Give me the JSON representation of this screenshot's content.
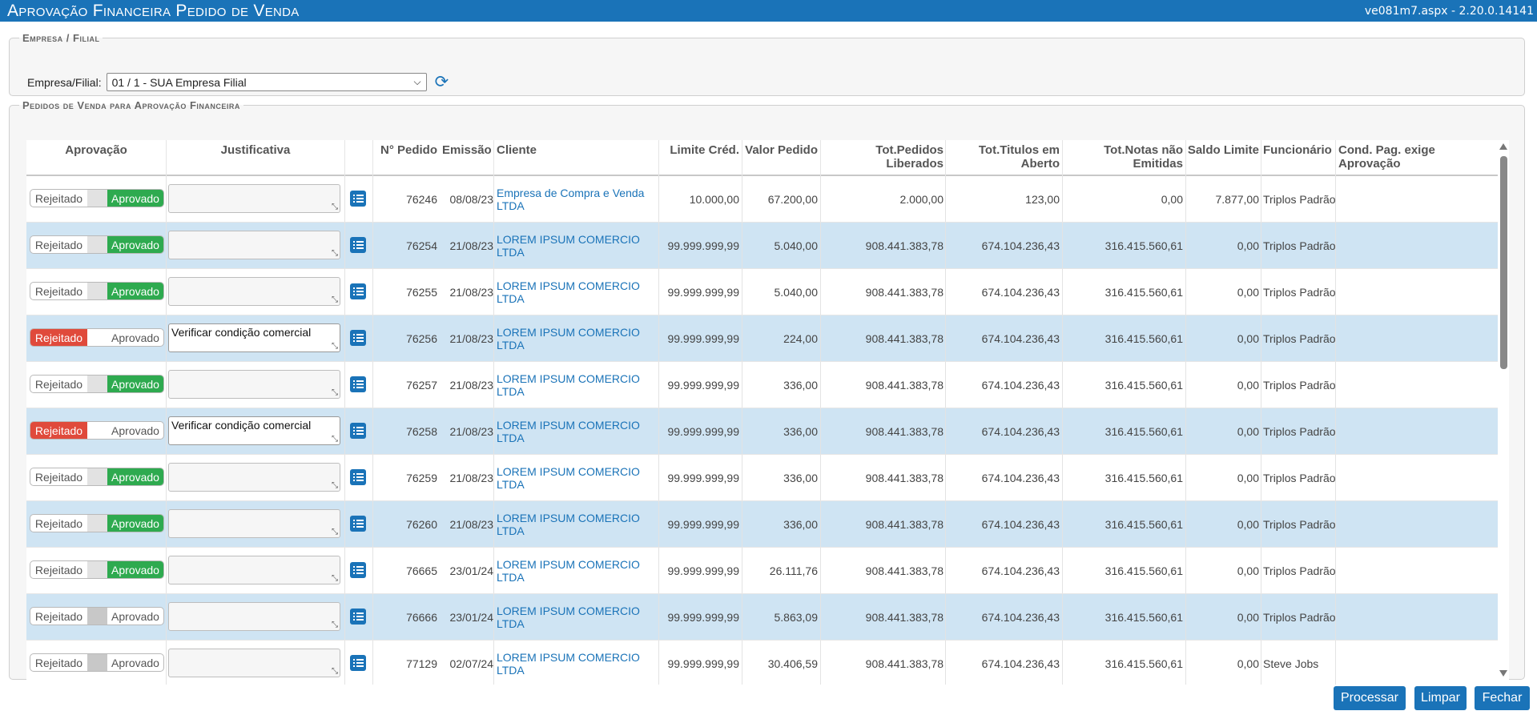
{
  "header": {
    "title": "Aprovação Financeira Pedido de Venda",
    "version": "ve081m7.aspx - 2.20.0.14141"
  },
  "empresa": {
    "legend": "Empresa / Filial",
    "label": "Empresa/Filial:",
    "selected": "01 / 1 - SUA Empresa Filial"
  },
  "pedidos": {
    "legend": "Pedidos de Venda para Aprovação Financeira",
    "columns": {
      "aprovacao": "Aprovação",
      "justificativa": "Justificativa",
      "pedido": "N° Pedido",
      "emissao": "Emissão",
      "cliente": "Cliente",
      "limite": "Limite Créd.",
      "valor": "Valor Pedido",
      "totped_1": "Tot.Pedidos",
      "totped_2": "Liberados",
      "tottit_1": "Tot.Titulos em",
      "tottit_2": "Aberto",
      "totnotas_1": "Tot.Notas não",
      "totnotas_2": "Emitidas",
      "saldo": "Saldo Limite",
      "funcionario": "Funcionário",
      "cond_1": "Cond. Pag. exige",
      "cond_2": "Aprovação"
    },
    "toggle_labels": {
      "rejected": "Rejeitado",
      "approved": "Aprovado"
    },
    "rows": [
      {
        "status": "approved",
        "justificativa": "",
        "pedido": "76246",
        "emissao": "08/08/23",
        "cliente_1": "Empresa de Compra e Venda",
        "cliente_2": "LTDA",
        "limite": "10.000,00",
        "valor": "67.200,00",
        "totped": "2.000,00",
        "tottit": "123,00",
        "totnotas": "0,00",
        "saldo": "7.877,00",
        "funcionario": "Triplos Padrão"
      },
      {
        "status": "approved",
        "justificativa": "",
        "pedido": "76254",
        "emissao": "21/08/23",
        "cliente_1": "LOREM IPSUM COMERCIO",
        "cliente_2": "LTDA",
        "limite": "99.999.999,99",
        "valor": "5.040,00",
        "totped": "908.441.383,78",
        "tottit": "674.104.236,43",
        "totnotas": "316.415.560,61",
        "saldo": "0,00",
        "funcionario": "Triplos Padrão"
      },
      {
        "status": "approved",
        "justificativa": "",
        "pedido": "76255",
        "emissao": "21/08/23",
        "cliente_1": "LOREM IPSUM COMERCIO",
        "cliente_2": "LTDA",
        "limite": "99.999.999,99",
        "valor": "5.040,00",
        "totped": "908.441.383,78",
        "tottit": "674.104.236,43",
        "totnotas": "316.415.560,61",
        "saldo": "0,00",
        "funcionario": "Triplos Padrão"
      },
      {
        "status": "rejected",
        "justificativa": "Verificar condição comercial",
        "pedido": "76256",
        "emissao": "21/08/23",
        "cliente_1": "LOREM IPSUM COMERCIO",
        "cliente_2": "LTDA",
        "limite": "99.999.999,99",
        "valor": "224,00",
        "totped": "908.441.383,78",
        "tottit": "674.104.236,43",
        "totnotas": "316.415.560,61",
        "saldo": "0,00",
        "funcionario": "Triplos Padrão"
      },
      {
        "status": "approved",
        "justificativa": "",
        "pedido": "76257",
        "emissao": "21/08/23",
        "cliente_1": "LOREM IPSUM COMERCIO",
        "cliente_2": "LTDA",
        "limite": "99.999.999,99",
        "valor": "336,00",
        "totped": "908.441.383,78",
        "tottit": "674.104.236,43",
        "totnotas": "316.415.560,61",
        "saldo": "0,00",
        "funcionario": "Triplos Padrão"
      },
      {
        "status": "rejected",
        "justificativa": "Verificar condição comercial",
        "pedido": "76258",
        "emissao": "21/08/23",
        "cliente_1": "LOREM IPSUM COMERCIO",
        "cliente_2": "LTDA",
        "limite": "99.999.999,99",
        "valor": "336,00",
        "totped": "908.441.383,78",
        "tottit": "674.104.236,43",
        "totnotas": "316.415.560,61",
        "saldo": "0,00",
        "funcionario": "Triplos Padrão"
      },
      {
        "status": "approved",
        "justificativa": "",
        "pedido": "76259",
        "emissao": "21/08/23",
        "cliente_1": "LOREM IPSUM COMERCIO",
        "cliente_2": "LTDA",
        "limite": "99.999.999,99",
        "valor": "336,00",
        "totped": "908.441.383,78",
        "tottit": "674.104.236,43",
        "totnotas": "316.415.560,61",
        "saldo": "0,00",
        "funcionario": "Triplos Padrão"
      },
      {
        "status": "approved",
        "justificativa": "",
        "pedido": "76260",
        "emissao": "21/08/23",
        "cliente_1": "LOREM IPSUM COMERCIO",
        "cliente_2": "LTDA",
        "limite": "99.999.999,99",
        "valor": "336,00",
        "totped": "908.441.383,78",
        "tottit": "674.104.236,43",
        "totnotas": "316.415.560,61",
        "saldo": "0,00",
        "funcionario": "Triplos Padrão"
      },
      {
        "status": "approved",
        "justificativa": "",
        "pedido": "76665",
        "emissao": "23/01/24",
        "cliente_1": "LOREM IPSUM COMERCIO",
        "cliente_2": "LTDA",
        "limite": "99.999.999,99",
        "valor": "26.111,76",
        "totped": "908.441.383,78",
        "tottit": "674.104.236,43",
        "totnotas": "316.415.560,61",
        "saldo": "0,00",
        "funcionario": "Triplos Padrão"
      },
      {
        "status": "pending",
        "justificativa": "",
        "pedido": "76666",
        "emissao": "23/01/24",
        "cliente_1": "LOREM IPSUM COMERCIO",
        "cliente_2": "LTDA",
        "limite": "99.999.999,99",
        "valor": "5.863,09",
        "totped": "908.441.383,78",
        "tottit": "674.104.236,43",
        "totnotas": "316.415.560,61",
        "saldo": "0,00",
        "funcionario": "Triplos Padrão"
      },
      {
        "status": "pending",
        "justificativa": "",
        "pedido": "77129",
        "emissao": "02/07/24",
        "cliente_1": "LOREM IPSUM COMERCIO",
        "cliente_2": "LTDA",
        "limite": "99.999.999,99",
        "valor": "30.406,59",
        "totped": "908.441.383,78",
        "tottit": "674.104.236,43",
        "totnotas": "316.415.560,61",
        "saldo": "0,00",
        "funcionario": "Steve Jobs"
      }
    ]
  },
  "buttons": {
    "processar": "Processar",
    "limpar": "Limpar",
    "fechar": "Fechar"
  },
  "colors": {
    "brand": "#1a73b8",
    "approved": "#2eaa4f",
    "rejected": "#e04a3b",
    "row_alt": "#cfe4f3"
  },
  "icons": {
    "refresh": "refresh-icon",
    "details": "list-icon",
    "select": "chevron-down-icon"
  }
}
